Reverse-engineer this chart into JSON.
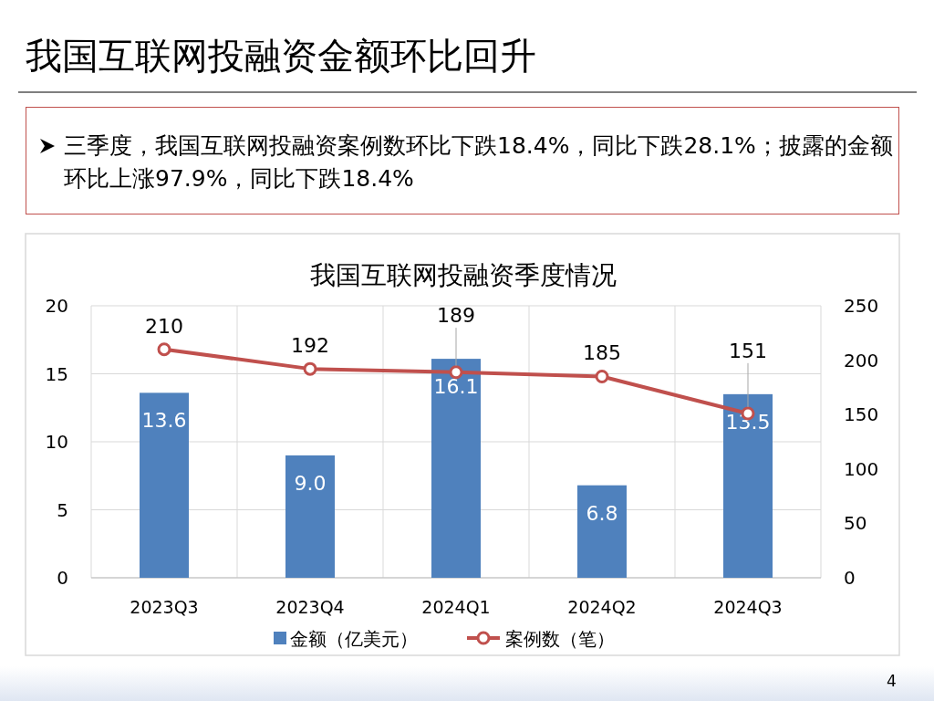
{
  "chart_data": {
    "type": "bar",
    "title": "我国互联网投融资金额环比回升",
    "subtitle": "我国互联网投融资季度情况",
    "annotations": [
      "三季度，我国互联网投融资案例数环比下跌18.4%，同比下跌28.1%；披露的金额环比上涨97.9%，同比下跌18.4%",
      "4"
    ],
    "categories": [
      "2023Q3",
      "2023Q4",
      "2024Q1",
      "2024Q2",
      "2024Q3"
    ],
    "series": [
      {
        "name": "金额（亿美元）",
        "color": "#4f81bd",
        "values": [
          13.6,
          9.0,
          16.1,
          6.8,
          13.5
        ],
        "value_labels": [
          "13.6",
          "9.0",
          "16.1",
          "6.8",
          "13.5"
        ]
      },
      {
        "name": "案例数（笔）",
        "type": "line",
        "axis": "y2",
        "color": "#c0504d",
        "values": [
          210,
          192,
          189,
          185,
          151
        ]
      }
    ],
    "ylim": [
      0,
      20
    ],
    "yticks": [
      0,
      5,
      10,
      15,
      20
    ],
    "y2lim": [
      0,
      250
    ],
    "y2ticks": [
      0,
      50,
      100,
      150,
      200,
      250
    ],
    "grid": true,
    "legend": "bottom",
    "marker": "circle",
    "data_labels": true
  }
}
